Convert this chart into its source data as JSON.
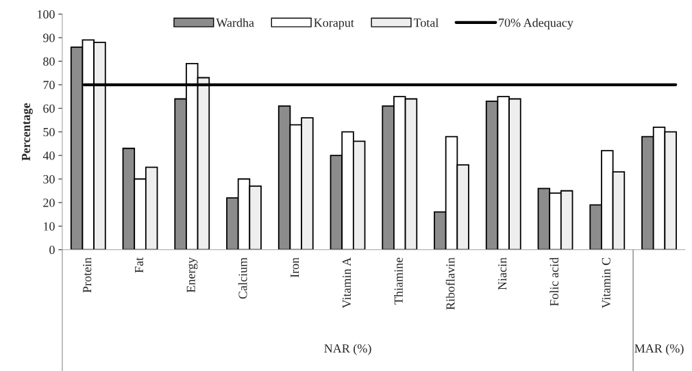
{
  "chart_data": {
    "type": "bar",
    "ylabel": "Percentage",
    "categories": [
      "Protein",
      "Fat",
      "Energy",
      "Calcium",
      "Iron",
      "Vitamin A",
      "Thiamine",
      "Riboflavin",
      "Niacin",
      "Folic acid",
      "Vitamin C",
      null
    ],
    "series": [
      {
        "name": "Wardha",
        "color": "#8c8c8c",
        "values": [
          86,
          43,
          64,
          22,
          61,
          40,
          61,
          16,
          63,
          26,
          19,
          48
        ]
      },
      {
        "name": "Koraput",
        "color": "#ffffff",
        "values": [
          89,
          30,
          79,
          30,
          53,
          50,
          65,
          48,
          65,
          24,
          42,
          52
        ]
      },
      {
        "name": "Total",
        "color": "#eeeeee",
        "values": [
          88,
          35,
          73,
          27,
          56,
          46,
          64,
          36,
          64,
          25,
          33,
          50
        ]
      }
    ],
    "ylim": [
      0,
      100
    ],
    "yticks": [
      0,
      10,
      20,
      30,
      40,
      50,
      60,
      70,
      80,
      90,
      100
    ],
    "ref_lines": [
      {
        "axis": "y",
        "value": 70,
        "label": "70% Adequacy",
        "color": "#000000",
        "line_style": "solid"
      }
    ],
    "annotations": [
      "NAR (%)",
      "MAR (%)"
    ],
    "legend": "top",
    "grid": false
  }
}
